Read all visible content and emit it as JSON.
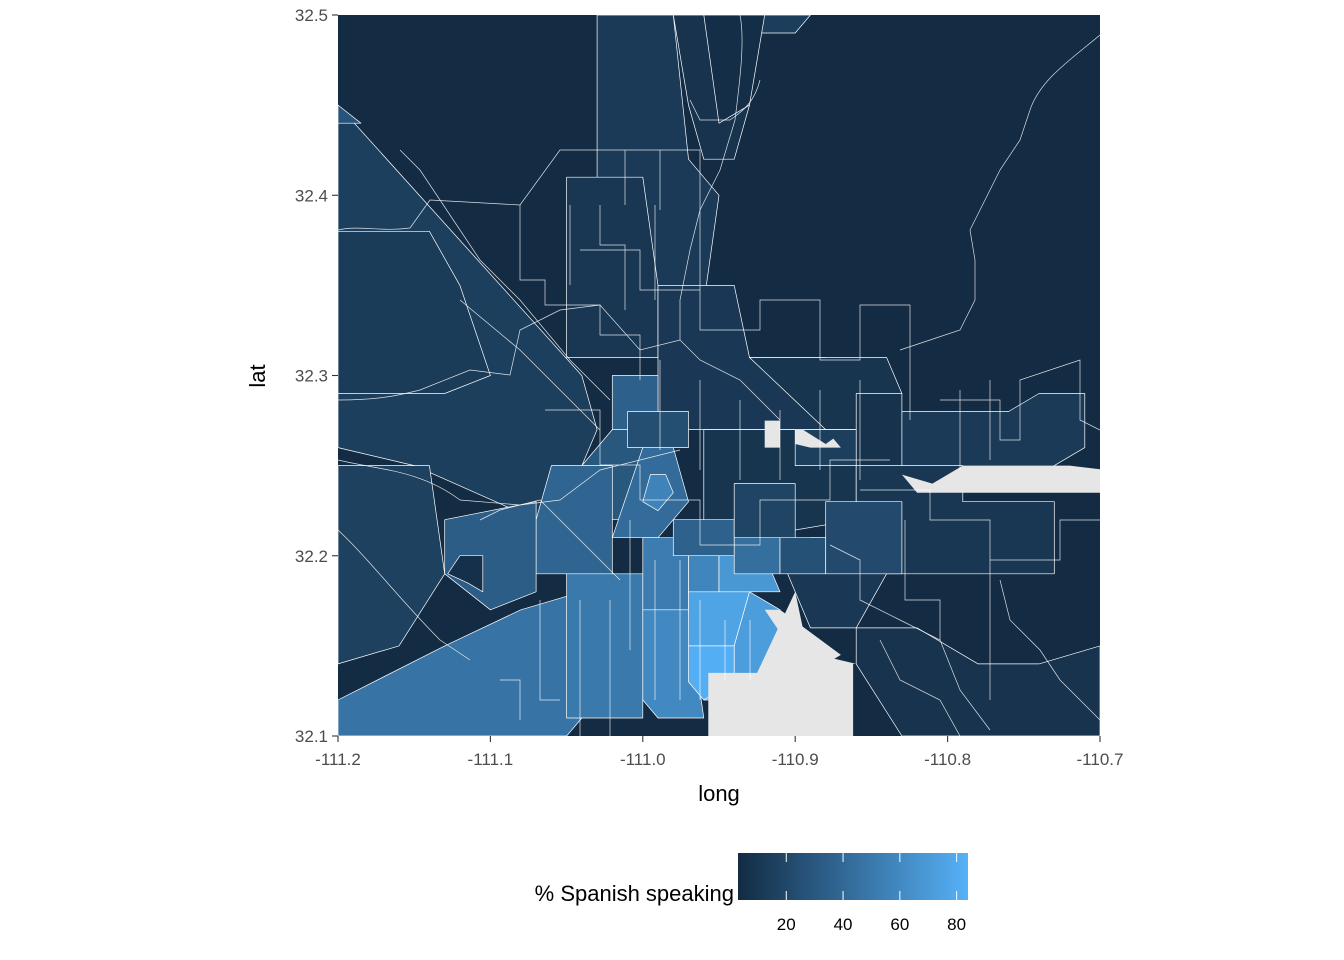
{
  "chart_data": {
    "type": "choropleth",
    "xlabel": "long",
    "ylabel": "lat",
    "xlim": [
      -111.2,
      -110.7
    ],
    "ylim": [
      32.1,
      32.5
    ],
    "x_ticks": [
      -111.2,
      -111.1,
      -111.0,
      -110.9,
      -110.8,
      -110.7
    ],
    "x_tick_labels": [
      "-111.2",
      "-111.1",
      "-111.0",
      "-110.9",
      "-110.8",
      "-110.7"
    ],
    "y_ticks": [
      32.1,
      32.2,
      32.3,
      32.4,
      32.5
    ],
    "y_tick_labels": [
      "32.1",
      "32.2",
      "32.3",
      "32.4",
      "32.5"
    ],
    "legend": {
      "title": "% Spanish speaking",
      "position": "bottom",
      "breaks": [
        20,
        40,
        60,
        80
      ],
      "break_labels": [
        "20",
        "40",
        "60",
        "80"
      ],
      "range": [
        3,
        84
      ],
      "low_color": "#132B43",
      "high_color": "#56B1F7",
      "na_color": "#e6e6e6"
    },
    "background_color": "#132B43",
    "regions": [
      {
        "pct": 15,
        "coords": [
          [
            -111.2,
            32.45
          ],
          [
            -111.04,
            32.3
          ],
          [
            -111.03,
            32.27
          ],
          [
            -111.05,
            32.23
          ],
          [
            -111.07,
            32.22
          ],
          [
            -111.15,
            32.25
          ],
          [
            -111.2,
            32.26
          ]
        ]
      },
      {
        "pct": 28,
        "coords": [
          [
            -111.2,
            32.45
          ],
          [
            -111.2,
            32.44
          ],
          [
            -111.185,
            32.44
          ]
        ]
      },
      {
        "pct": 13,
        "coords": [
          [
            -111.2,
            32.38
          ],
          [
            -111.14,
            32.38
          ],
          [
            -111.12,
            32.35
          ],
          [
            -111.1,
            32.3
          ],
          [
            -111.13,
            32.29
          ],
          [
            -111.17,
            32.29
          ],
          [
            -111.2,
            32.29
          ]
        ]
      },
      {
        "pct": 12,
        "coords": [
          [
            -111.03,
            32.5
          ],
          [
            -110.98,
            32.5
          ],
          [
            -110.97,
            32.42
          ],
          [
            -110.95,
            32.4
          ],
          [
            -110.96,
            32.34
          ],
          [
            -110.99,
            32.34
          ],
          [
            -111.0,
            32.38
          ],
          [
            -111.03,
            32.38
          ]
        ]
      },
      {
        "pct": 8,
        "coords": [
          [
            -110.98,
            32.5
          ],
          [
            -110.93,
            32.5
          ],
          [
            -110.93,
            32.45
          ],
          [
            -110.94,
            32.42
          ],
          [
            -110.96,
            32.42
          ],
          [
            -110.97,
            32.45
          ]
        ]
      },
      {
        "pct": 14,
        "coords": [
          [
            -110.94,
            32.5
          ],
          [
            -110.89,
            32.5
          ],
          [
            -110.9,
            32.49
          ],
          [
            -110.93,
            32.49
          ]
        ]
      },
      {
        "pct": 10,
        "coords": [
          [
            -111.05,
            32.41
          ],
          [
            -111.0,
            32.41
          ],
          [
            -110.99,
            32.35
          ],
          [
            -110.99,
            32.31
          ],
          [
            -111.05,
            32.31
          ]
        ]
      },
      {
        "pct": 11,
        "coords": [
          [
            -110.99,
            32.35
          ],
          [
            -110.94,
            32.35
          ],
          [
            -110.93,
            32.31
          ],
          [
            -110.88,
            32.31
          ],
          [
            -110.88,
            32.27
          ],
          [
            -110.99,
            32.27
          ]
        ]
      },
      {
        "pct": 9,
        "coords": [
          [
            -110.93,
            32.31
          ],
          [
            -110.84,
            32.31
          ],
          [
            -110.83,
            32.29
          ],
          [
            -110.85,
            32.27
          ],
          [
            -110.88,
            32.27
          ]
        ]
      },
      {
        "pct": 7,
        "coords": [
          [
            -110.86,
            32.29
          ],
          [
            -110.83,
            32.29
          ],
          [
            -110.83,
            32.24
          ],
          [
            -110.86,
            32.24
          ]
        ]
      },
      {
        "pct": 12,
        "coords": [
          [
            -110.83,
            32.28
          ],
          [
            -110.76,
            32.28
          ],
          [
            -110.74,
            32.29
          ],
          [
            -110.71,
            32.29
          ],
          [
            -110.71,
            32.26
          ],
          [
            -110.75,
            32.24
          ],
          [
            -110.83,
            32.24
          ]
        ]
      },
      {
        "pct": 9,
        "coords": [
          [
            -110.96,
            32.27
          ],
          [
            -110.9,
            32.27
          ],
          [
            -110.89,
            32.25
          ],
          [
            -110.86,
            32.25
          ],
          [
            -110.86,
            32.22
          ],
          [
            -110.93,
            32.21
          ],
          [
            -110.96,
            32.21
          ]
        ]
      },
      {
        "pct": 15,
        "coords": [
          [
            -110.9,
            32.27
          ],
          [
            -110.86,
            32.27
          ],
          [
            -110.86,
            32.25
          ],
          [
            -110.9,
            32.25
          ]
        ]
      },
      {
        "pct": 10,
        "coords": [
          [
            -110.86,
            32.25
          ],
          [
            -110.79,
            32.25
          ],
          [
            -110.79,
            32.23
          ],
          [
            -110.73,
            32.23
          ],
          [
            -110.73,
            32.19
          ],
          [
            -110.84,
            32.19
          ],
          [
            -110.86,
            32.2
          ]
        ]
      },
      {
        "pct": 11,
        "coords": [
          [
            -110.89,
            32.21
          ],
          [
            -110.84,
            32.21
          ],
          [
            -110.84,
            32.19
          ],
          [
            -110.86,
            32.16
          ],
          [
            -110.89,
            32.16
          ],
          [
            -110.91,
            32.2
          ]
        ]
      },
      {
        "pct": 8,
        "coords": [
          [
            -110.86,
            32.16
          ],
          [
            -110.82,
            32.16
          ],
          [
            -110.78,
            32.14
          ],
          [
            -110.74,
            32.14
          ],
          [
            -110.7,
            32.15
          ],
          [
            -110.7,
            32.1
          ],
          [
            -110.83,
            32.1
          ],
          [
            -110.86,
            32.14
          ]
        ]
      },
      {
        "pct": 30,
        "coords": [
          [
            -111.02,
            32.27
          ],
          [
            -110.99,
            32.27
          ],
          [
            -110.98,
            32.25
          ],
          [
            -111.0,
            32.22
          ],
          [
            -111.02,
            32.22
          ],
          [
            -111.04,
            32.25
          ]
        ]
      },
      {
        "pct": 42,
        "coords": [
          [
            -111.0,
            32.26
          ],
          [
            -110.98,
            32.26
          ],
          [
            -110.97,
            32.23
          ],
          [
            -110.99,
            32.21
          ],
          [
            -111.02,
            32.21
          ]
        ]
      },
      {
        "pct": 56,
        "coords": [
          [
            -110.995,
            32.245
          ],
          [
            -110.985,
            32.245
          ],
          [
            -110.98,
            32.235
          ],
          [
            -110.99,
            32.225
          ],
          [
            -111.0,
            32.23
          ]
        ]
      },
      {
        "pct": 38,
        "coords": [
          [
            -111.06,
            32.25
          ],
          [
            -111.02,
            32.25
          ],
          [
            -111.02,
            32.19
          ],
          [
            -111.07,
            32.19
          ],
          [
            -111.07,
            32.22
          ]
        ]
      },
      {
        "pct": 33,
        "coords": [
          [
            -111.13,
            32.22
          ],
          [
            -111.07,
            32.23
          ],
          [
            -111.07,
            32.18
          ],
          [
            -111.1,
            32.17
          ],
          [
            -111.13,
            32.19
          ]
        ]
      },
      {
        "pct": 6,
        "coords": [
          [
            -111.12,
            32.2
          ],
          [
            -111.105,
            32.2
          ],
          [
            -111.105,
            32.18
          ],
          [
            -111.115,
            32.185
          ],
          [
            -111.128,
            32.19
          ]
        ]
      },
      {
        "pct": 16,
        "coords": [
          [
            -111.2,
            32.25
          ],
          [
            -111.14,
            32.25
          ],
          [
            -111.13,
            32.19
          ],
          [
            -111.16,
            32.15
          ],
          [
            -111.2,
            32.14
          ]
        ]
      },
      {
        "pct": 47,
        "coords": [
          [
            -111.2,
            32.12
          ],
          [
            -111.13,
            32.15
          ],
          [
            -111.08,
            32.17
          ],
          [
            -111.04,
            32.18
          ],
          [
            -111.03,
            32.12
          ],
          [
            -111.05,
            32.1
          ],
          [
            -111.2,
            32.1
          ]
        ]
      },
      {
        "pct": 50,
        "coords": [
          [
            -111.05,
            32.19
          ],
          [
            -111.0,
            32.19
          ],
          [
            -111.0,
            32.11
          ],
          [
            -111.05,
            32.11
          ]
        ]
      },
      {
        "pct": 52,
        "coords": [
          [
            -111.0,
            32.21
          ],
          [
            -110.97,
            32.21
          ],
          [
            -110.97,
            32.17
          ],
          [
            -111.0,
            32.17
          ]
        ]
      },
      {
        "pct": 60,
        "coords": [
          [
            -111.0,
            32.17
          ],
          [
            -110.97,
            32.17
          ],
          [
            -110.96,
            32.11
          ],
          [
            -110.99,
            32.11
          ],
          [
            -111.0,
            32.12
          ]
        ]
      },
      {
        "pct": 58,
        "coords": [
          [
            -110.97,
            32.2
          ],
          [
            -110.95,
            32.2
          ],
          [
            -110.95,
            32.18
          ],
          [
            -110.97,
            32.18
          ]
        ]
      },
      {
        "pct": 68,
        "coords": [
          [
            -110.95,
            32.2
          ],
          [
            -110.92,
            32.2
          ],
          [
            -110.91,
            32.18
          ],
          [
            -110.95,
            32.18
          ]
        ]
      },
      {
        "pct": 76,
        "coords": [
          [
            -110.97,
            32.18
          ],
          [
            -110.93,
            32.18
          ],
          [
            -110.94,
            32.15
          ],
          [
            -110.97,
            32.15
          ]
        ]
      },
      {
        "pct": 72,
        "coords": [
          [
            -110.93,
            32.18
          ],
          [
            -110.91,
            32.17
          ],
          [
            -110.89,
            32.13
          ],
          [
            -110.94,
            32.13
          ],
          [
            -110.94,
            32.15
          ]
        ]
      },
      {
        "pct": 82,
        "coords": [
          [
            -110.97,
            32.15
          ],
          [
            -110.94,
            32.15
          ],
          [
            -110.94,
            32.13
          ],
          [
            -110.96,
            32.12
          ],
          [
            -110.97,
            32.13
          ]
        ]
      },
      {
        "pct": 70,
        "coords": [
          [
            -110.96,
            32.12
          ],
          [
            -110.94,
            32.13
          ],
          [
            -110.89,
            32.13
          ],
          [
            -110.89,
            32.12
          ],
          [
            -110.96,
            32.12
          ]
        ]
      },
      {
        "pct": 44,
        "coords": [
          [
            -110.94,
            32.21
          ],
          [
            -110.91,
            32.21
          ],
          [
            -110.91,
            32.19
          ],
          [
            -110.94,
            32.19
          ]
        ]
      },
      {
        "pct": 36,
        "coords": [
          [
            -110.98,
            32.22
          ],
          [
            -110.94,
            32.22
          ],
          [
            -110.94,
            32.2
          ],
          [
            -110.98,
            32.2
          ]
        ]
      },
      {
        "pct": 26,
        "coords": [
          [
            -110.91,
            32.21
          ],
          [
            -110.88,
            32.21
          ],
          [
            -110.88,
            32.19
          ],
          [
            -110.91,
            32.19
          ]
        ]
      },
      {
        "pct": 18,
        "coords": [
          [
            -110.94,
            32.24
          ],
          [
            -110.9,
            32.24
          ],
          [
            -110.9,
            32.21
          ],
          [
            -110.94,
            32.21
          ]
        ]
      },
      {
        "pct": 22,
        "coords": [
          [
            -110.88,
            32.23
          ],
          [
            -110.83,
            32.23
          ],
          [
            -110.83,
            32.19
          ],
          [
            -110.88,
            32.19
          ]
        ]
      },
      {
        "pct": 35,
        "coords": [
          [
            -111.02,
            32.3
          ],
          [
            -110.99,
            32.3
          ],
          [
            -110.99,
            32.27
          ],
          [
            -111.02,
            32.27
          ]
        ]
      },
      {
        "pct": 5,
        "coords": [
          [
            -110.96,
            32.5
          ],
          [
            -110.92,
            32.5
          ],
          [
            -110.93,
            32.45
          ],
          [
            -110.95,
            32.44
          ]
        ]
      },
      {
        "pct": 24,
        "coords": [
          [
            -111.01,
            32.28
          ],
          [
            -110.97,
            32.28
          ],
          [
            -110.97,
            32.26
          ],
          [
            -111.01,
            32.26
          ]
        ]
      }
    ],
    "na_regions": [
      {
        "coords": [
          [
            -110.957,
            32.1
          ],
          [
            -110.957,
            32.135
          ],
          [
            -110.925,
            32.135
          ],
          [
            -110.9,
            32.18
          ],
          [
            -110.895,
            32.16
          ],
          [
            -110.885,
            32.145
          ],
          [
            -110.86,
            32.14
          ],
          [
            -110.86,
            32.14
          ],
          [
            -110.862,
            32.14
          ],
          [
            -110.862,
            32.1
          ]
        ]
      },
      {
        "coords": [
          [
            -110.92,
            32.17
          ],
          [
            -110.91,
            32.17
          ],
          [
            -110.87,
            32.145
          ],
          [
            -110.88,
            32.14
          ],
          [
            -110.9,
            32.145
          ]
        ]
      },
      {
        "coords": [
          [
            -110.92,
            32.275
          ],
          [
            -110.91,
            32.275
          ],
          [
            -110.91,
            32.26
          ],
          [
            -110.92,
            32.26
          ]
        ]
      },
      {
        "coords": [
          [
            -110.9,
            32.27
          ],
          [
            -110.895,
            32.27
          ],
          [
            -110.88,
            32.262
          ],
          [
            -110.875,
            32.265
          ],
          [
            -110.87,
            32.26
          ],
          [
            -110.89,
            32.26
          ],
          [
            -110.9,
            32.262
          ]
        ]
      },
      {
        "coords": [
          [
            -110.83,
            32.245
          ],
          [
            -110.81,
            32.24
          ],
          [
            -110.79,
            32.25
          ],
          [
            -110.75,
            32.25
          ],
          [
            -110.72,
            32.25
          ],
          [
            -110.7,
            32.248
          ],
          [
            -110.7,
            32.235
          ],
          [
            -110.82,
            32.235
          ],
          [
            -110.825,
            32.24
          ]
        ]
      }
    ]
  }
}
